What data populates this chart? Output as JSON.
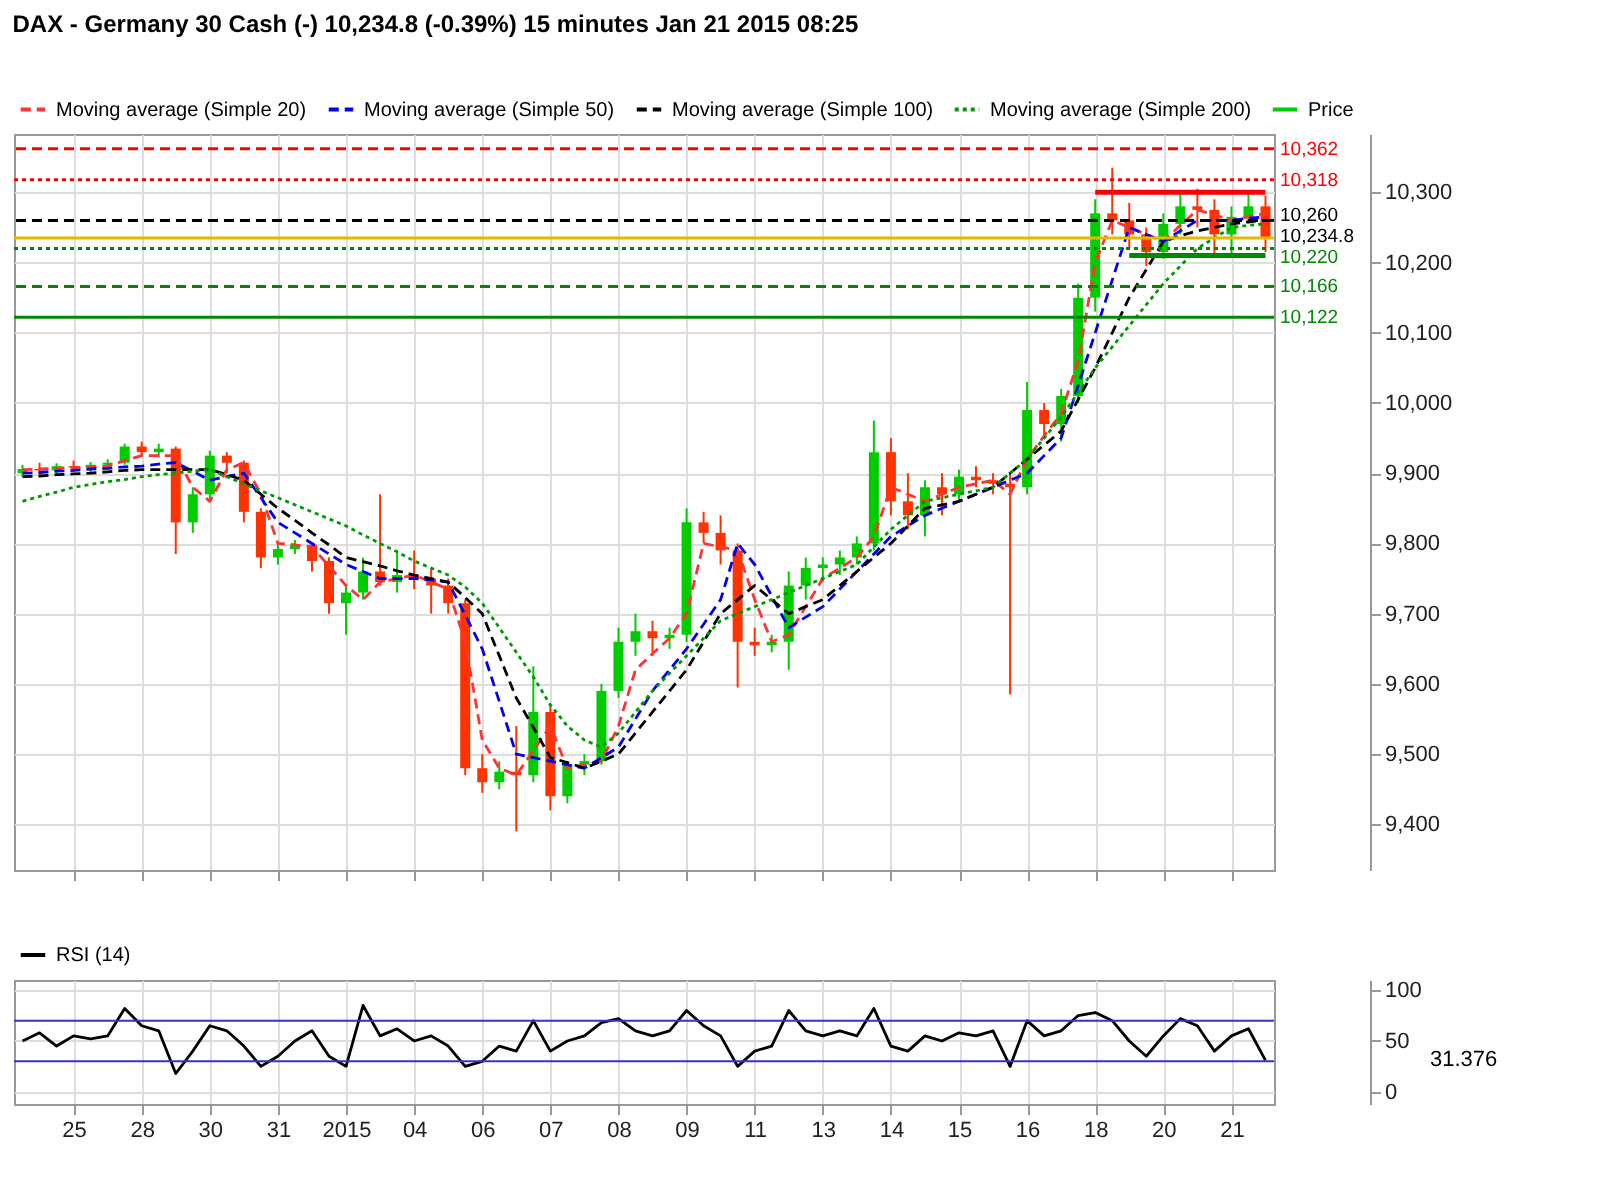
{
  "chart_data": [
    {
      "type": "candlestick",
      "title": "DAX - Germany 30 Cash (-)    10,234.8 (-0.39%)    15 minutes  Jan 21 2015 08:25",
      "categories": [
        null,
        null,
        null,
        "25",
        null,
        null,
        null,
        "28",
        null,
        null,
        null,
        "30",
        null,
        null,
        null,
        "31",
        null,
        null,
        null,
        "2015",
        null,
        null,
        null,
        "04",
        null,
        null,
        null,
        "06",
        null,
        null,
        null,
        "07",
        null,
        null,
        null,
        "08",
        null,
        null,
        null,
        "09",
        null,
        null,
        null,
        "11",
        null,
        null,
        null,
        "13",
        null,
        null,
        null,
        "14",
        null,
        null,
        null,
        "15",
        null,
        null,
        null,
        "16",
        null,
        null,
        null,
        "18",
        null,
        null,
        null,
        "20",
        null,
        null,
        null,
        "21",
        null,
        null
      ],
      "ylim": [
        9335,
        10383
      ],
      "yticks": [
        {
          "value": 9400,
          "label": "9,400"
        },
        {
          "value": 9500,
          "label": "9,500"
        },
        {
          "value": 9600,
          "label": "9,600"
        },
        {
          "value": 9700,
          "label": "9,700"
        },
        {
          "value": 9800,
          "label": "9,800"
        },
        {
          "value": 9900,
          "label": "9,900"
        },
        {
          "value": 10000,
          "label": "10,000"
        },
        {
          "value": 10100,
          "label": "10,100"
        },
        {
          "value": 10200,
          "label": "10,200"
        },
        {
          "value": 10300,
          "label": "10,300"
        }
      ],
      "tick_labels": "y",
      "grid": true,
      "legend": "top left",
      "series": [
        {
          "name": "Moving average (Simple 20)",
          "type": "line",
          "color": "#ff3333",
          "line_style": "dashed",
          "values": [
            9905,
            9906,
            9907,
            9908,
            9909,
            9910,
            9918,
            9925,
            9925,
            9925,
            9880,
            9860,
            9905,
            9915,
            9870,
            9800,
            9798,
            9795,
            9768,
            9740,
            9720,
            9745,
            9750,
            9755,
            9745,
            9735,
            9660,
            9520,
            9480,
            9470,
            9505,
            9540,
            9480,
            9485,
            9490,
            9540,
            9620,
            9643,
            9665,
            9700,
            9800,
            9795,
            9790,
            9720,
            9660,
            9670,
            9710,
            9750,
            9765,
            9780,
            9810,
            9880,
            9870,
            9860,
            9870,
            9880,
            9885,
            9890,
            9870,
            9920,
            9953,
            9985,
            10060,
            10200,
            10260,
            10250,
            10240,
            10230,
            10253,
            10275,
            10268,
            10260,
            10265,
            10270
          ]
        },
        {
          "name": "Moving average (Simple 50)",
          "type": "line",
          "color": "#0000ee",
          "line_style": "dashed",
          "values": [
            9900,
            9901,
            9903,
            9904,
            9906,
            9907,
            9909,
            9910,
            9913,
            9915,
            9903,
            9890,
            9895,
            9900,
            9865,
            9830,
            9815,
            9800,
            9785,
            9770,
            9760,
            9750,
            9750,
            9750,
            9748,
            9745,
            9698,
            9650,
            9575,
            9500,
            9495,
            9490,
            9485,
            9480,
            9495,
            9510,
            9550,
            9590,
            9620,
            9650,
            9685,
            9720,
            9800,
            9770,
            9725,
            9680,
            9695,
            9710,
            9735,
            9760,
            9785,
            9810,
            9825,
            9840,
            9850,
            9860,
            9870,
            9880,
            9890,
            9900,
            9925,
            9950,
            10025,
            10100,
            10175,
            10250,
            10240,
            10230,
            10245,
            10260,
            10260,
            10260,
            10263,
            10265
          ]
        },
        {
          "name": "Moving average (Simple 100)",
          "type": "line",
          "color": "#000000",
          "line_style": "dashed",
          "values": [
            9895,
            9896,
            9898,
            9899,
            9900,
            9902,
            9904,
            9905,
            9905,
            9905,
            9905,
            9905,
            9898,
            9890,
            9870,
            9850,
            9833,
            9815,
            9798,
            9780,
            9774,
            9768,
            9761,
            9755,
            9750,
            9745,
            9723,
            9700,
            9640,
            9580,
            9538,
            9495,
            9488,
            9480,
            9490,
            9500,
            9530,
            9560,
            9590,
            9620,
            9660,
            9700,
            9720,
            9740,
            9720,
            9700,
            9710,
            9720,
            9740,
            9760,
            9780,
            9800,
            9825,
            9850,
            9855,
            9860,
            9870,
            9880,
            9900,
            9920,
            9940,
            9960,
            10005,
            10050,
            10100,
            10150,
            10190,
            10230,
            10238,
            10245,
            10250,
            10255,
            10258,
            10260
          ]
        },
        {
          "name": "Moving average (Simple 200)",
          "type": "line",
          "color": "#009900",
          "line_style": "dotted",
          "values": [
            9860,
            9867,
            9873,
            9880,
            9884,
            9888,
            9891,
            9895,
            9898,
            9900,
            9903,
            9905,
            9895,
            9885,
            9875,
            9865,
            9855,
            9845,
            9835,
            9825,
            9812,
            9800,
            9788,
            9775,
            9765,
            9755,
            9738,
            9715,
            9680,
            9645,
            9610,
            9570,
            9540,
            9520,
            9510,
            9530,
            9560,
            9590,
            9615,
            9640,
            9665,
            9690,
            9700,
            9710,
            9720,
            9730,
            9740,
            9750,
            9760,
            9770,
            9795,
            9820,
            9840,
            9860,
            9865,
            9870,
            9875,
            9880,
            9900,
            9920,
            9950,
            9980,
            10015,
            10050,
            10080,
            10110,
            10140,
            10170,
            10195,
            10220,
            10235,
            10250,
            10253,
            10255
          ]
        },
        {
          "name": "Price",
          "type": "candlestick",
          "colors": [
            "#00cc00",
            "#ff3300",
            "#00cc00",
            "#ff3300",
            "#00cc00",
            "#00cc00",
            "#00cc00",
            "#ff3300",
            "#00cc00",
            "#ff3300",
            "#00cc00",
            "#00cc00",
            "#ff3300",
            "#ff3300",
            "#ff3300",
            "#00cc00",
            "#00cc00",
            "#ff3300",
            "#ff3300",
            "#00cc00",
            "#00cc00",
            "#ff3300",
            "#00cc00",
            "#ff3300",
            "#ff3300",
            "#ff3300",
            "#ff3300",
            "#ff3300",
            "#00cc00",
            "#ff3300",
            "#00cc00",
            "#ff3300",
            "#00cc00",
            "#00cc00",
            "#00cc00",
            "#00cc00",
            "#00cc00",
            "#ff3300",
            "#00cc00",
            "#00cc00",
            "#ff3300",
            "#ff3300",
            "#ff3300",
            "#ff3300",
            "#00cc00",
            "#00cc00",
            "#00cc00",
            "#00cc00",
            "#00cc00",
            "#00cc00",
            "#00cc00",
            "#ff3300",
            "#ff3300",
            "#00cc00",
            "#ff3300",
            "#00cc00",
            "#ff3300",
            "#ff3300",
            "#ff3300",
            "#00cc00",
            "#ff3300",
            "#00cc00",
            "#00cc00",
            "#00cc00",
            "#ff3300",
            "#ff3300",
            "#ff3300",
            "#00cc00",
            "#00cc00",
            "#ff3300",
            "#ff3300",
            "#00cc00",
            "#00cc00",
            "#ff3300"
          ],
          "ohlc": [
            [
              9900,
              9912,
              9895,
              9906
            ],
            [
              9906,
              9915,
              9898,
              9904
            ],
            [
              9904,
              9914,
              9900,
              9910
            ],
            [
              9910,
              9918,
              9902,
              9908
            ],
            [
              9908,
              9916,
              9900,
              9912
            ],
            [
              9912,
              9920,
              9905,
              9915
            ],
            [
              9915,
              9942,
              9912,
              9938
            ],
            [
              9938,
              9945,
              9925,
              9930
            ],
            [
              9930,
              9942,
              9922,
              9935
            ],
            [
              9935,
              9938,
              9785,
              9830
            ],
            [
              9830,
              9880,
              9815,
              9870
            ],
            [
              9870,
              9932,
              9860,
              9925
            ],
            [
              9925,
              9930,
              9900,
              9915
            ],
            [
              9915,
              9918,
              9830,
              9845
            ],
            [
              9845,
              9850,
              9765,
              9780
            ],
            [
              9780,
              9800,
              9770,
              9792
            ],
            [
              9792,
              9805,
              9785,
              9798
            ],
            [
              9798,
              9802,
              9760,
              9775
            ],
            [
              9775,
              9780,
              9700,
              9715
            ],
            [
              9715,
              9740,
              9670,
              9730
            ],
            [
              9730,
              9780,
              9720,
              9760
            ],
            [
              9760,
              9870,
              9740,
              9745
            ],
            [
              9745,
              9790,
              9730,
              9755
            ],
            [
              9755,
              9790,
              9735,
              9750
            ],
            [
              9750,
              9765,
              9700,
              9740
            ],
            [
              9740,
              9750,
              9700,
              9715
            ],
            [
              9715,
              9720,
              9470,
              9480
            ],
            [
              9480,
              9500,
              9445,
              9460
            ],
            [
              9460,
              9490,
              9450,
              9475
            ],
            [
              9475,
              9540,
              9390,
              9470
            ],
            [
              9470,
              9625,
              9460,
              9560
            ],
            [
              9560,
              9570,
              9420,
              9440
            ],
            [
              9440,
              9490,
              9430,
              9485
            ],
            [
              9485,
              9500,
              9470,
              9490
            ],
            [
              9490,
              9600,
              9485,
              9590
            ],
            [
              9590,
              9680,
              9580,
              9660
            ],
            [
              9660,
              9700,
              9640,
              9675
            ],
            [
              9675,
              9690,
              9640,
              9665
            ],
            [
              9665,
              9680,
              9650,
              9670
            ],
            [
              9670,
              9850,
              9660,
              9830
            ],
            [
              9830,
              9845,
              9800,
              9815
            ],
            [
              9815,
              9840,
              9770,
              9790
            ],
            [
              9790,
              9800,
              9595,
              9660
            ],
            [
              9660,
              9680,
              9640,
              9655
            ],
            [
              9655,
              9670,
              9645,
              9660
            ],
            [
              9660,
              9760,
              9620,
              9740
            ],
            [
              9740,
              9780,
              9720,
              9765
            ],
            [
              9765,
              9780,
              9745,
              9770
            ],
            [
              9770,
              9790,
              9755,
              9780
            ],
            [
              9780,
              9810,
              9770,
              9800
            ],
            [
              9800,
              9975,
              9790,
              9930
            ],
            [
              9930,
              9950,
              9840,
              9860
            ],
            [
              9860,
              9900,
              9820,
              9840
            ],
            [
              9840,
              9890,
              9810,
              9880
            ],
            [
              9880,
              9900,
              9840,
              9870
            ],
            [
              9870,
              9905,
              9860,
              9895
            ],
            [
              9895,
              9910,
              9880,
              9890
            ],
            [
              9890,
              9900,
              9870,
              9885
            ],
            [
              9885,
              9900,
              9585,
              9880
            ],
            [
              9880,
              10030,
              9870,
              9990
            ],
            [
              9990,
              10000,
              9950,
              9970
            ],
            [
              9970,
              10020,
              9945,
              10010
            ],
            [
              10010,
              10170,
              10000,
              10150
            ],
            [
              10150,
              10290,
              10130,
              10270
            ],
            [
              10270,
              10335,
              10240,
              10260
            ],
            [
              10260,
              10285,
              10220,
              10240
            ],
            [
              10240,
              10250,
              10195,
              10215
            ],
            [
              10215,
              10270,
              10205,
              10255
            ],
            [
              10255,
              10300,
              10240,
              10280
            ],
            [
              10280,
              10305,
              10250,
              10275
            ],
            [
              10275,
              10290,
              10210,
              10240
            ],
            [
              10240,
              10280,
              10210,
              10265
            ],
            [
              10265,
              10300,
              10255,
              10280
            ],
            [
              10280,
              10295,
              10215,
              10234.8
            ]
          ]
        },
        {
          "type": "line",
          "color": "#ff0000",
          "line_style": "solid",
          "values": [
            null,
            null,
            null,
            null,
            null,
            null,
            null,
            null,
            null,
            null,
            null,
            null,
            null,
            null,
            null,
            null,
            null,
            null,
            null,
            null,
            null,
            null,
            null,
            null,
            null,
            null,
            null,
            null,
            null,
            null,
            null,
            null,
            null,
            null,
            null,
            null,
            null,
            null,
            null,
            null,
            null,
            null,
            null,
            null,
            null,
            null,
            null,
            null,
            null,
            null,
            null,
            null,
            null,
            null,
            null,
            null,
            null,
            null,
            null,
            null,
            null,
            null,
            null,
            10300,
            10300,
            10300,
            10300,
            10300,
            10300,
            10300,
            10300,
            10300,
            10300,
            10300
          ]
        },
        {
          "type": "line",
          "color": "#008800",
          "line_style": "solid",
          "values": [
            null,
            null,
            null,
            null,
            null,
            null,
            null,
            null,
            null,
            null,
            null,
            null,
            null,
            null,
            null,
            null,
            null,
            null,
            null,
            null,
            null,
            null,
            null,
            null,
            null,
            null,
            null,
            null,
            null,
            null,
            null,
            null,
            null,
            null,
            null,
            null,
            null,
            null,
            null,
            null,
            null,
            null,
            null,
            null,
            null,
            null,
            null,
            null,
            null,
            null,
            null,
            null,
            null,
            null,
            null,
            null,
            null,
            null,
            null,
            null,
            null,
            null,
            null,
            null,
            null,
            10210,
            10210,
            10210,
            10210,
            10210,
            10210,
            10210,
            10210,
            10210
          ]
        }
      ],
      "ref_lines": [
        {
          "axis": "y",
          "value": 10362,
          "label": "10,362",
          "color": "#ff0000",
          "line_style": "dashed"
        },
        {
          "axis": "y",
          "value": 10318,
          "label": "10,318",
          "color": "#ff0000",
          "line_style": "dotted"
        },
        {
          "axis": "y",
          "value": 10260,
          "label": "10,260",
          "color": "#000000",
          "line_style": "dashed"
        },
        {
          "axis": "y",
          "value": 10234.8,
          "label": "10,234.8",
          "color": "#e6b800",
          "line_style": "solid"
        },
        {
          "axis": "y",
          "value": 10220,
          "label": "10,220",
          "color": "#008800",
          "line_style": "dotted"
        },
        {
          "axis": "y",
          "value": 10166,
          "label": "10,166",
          "color": "#008800",
          "line_style": "dashed"
        },
        {
          "axis": "y",
          "value": 10122,
          "label": "10,122",
          "color": "#008800",
          "line_style": "solid"
        }
      ]
    },
    {
      "type": "line",
      "categories": [
        null,
        null,
        null,
        "25",
        null,
        null,
        null,
        "28",
        null,
        null,
        null,
        "30",
        null,
        null,
        null,
        "31",
        null,
        null,
        null,
        "2015",
        null,
        null,
        null,
        "04",
        null,
        null,
        null,
        "06",
        null,
        null,
        null,
        "07",
        null,
        null,
        null,
        "08",
        null,
        null,
        null,
        "09",
        null,
        null,
        null,
        "11",
        null,
        null,
        null,
        "13",
        null,
        null,
        null,
        "14",
        null,
        null,
        null,
        "15",
        null,
        null,
        null,
        "16",
        null,
        null,
        null,
        "18",
        null,
        null,
        null,
        "20",
        null,
        null,
        null,
        "21",
        null,
        null
      ],
      "ylim": [
        -12,
        110
      ],
      "yticks": [
        0,
        50,
        100
      ],
      "grid": true,
      "legend": "top left",
      "series": [
        {
          "name": "RSI (14)",
          "color": "#000000",
          "values": [
            50,
            58,
            45,
            55,
            52,
            55,
            82,
            65,
            60,
            18,
            40,
            65,
            60,
            45,
            25,
            35,
            50,
            60,
            35,
            25,
            85,
            55,
            62,
            50,
            55,
            45,
            25,
            30,
            45,
            40,
            70,
            40,
            50,
            55,
            68,
            72,
            60,
            55,
            60,
            80,
            65,
            55,
            25,
            40,
            45,
            80,
            60,
            55,
            60,
            55,
            82,
            45,
            40,
            55,
            50,
            58,
            55,
            60,
            25,
            70,
            55,
            60,
            75,
            78,
            70,
            50,
            35,
            55,
            72,
            65,
            40,
            55,
            62,
            31
          ]
        }
      ],
      "ref_lines": [
        {
          "axis": "y",
          "value": 70,
          "color": "#3333cc",
          "line_style": "solid"
        },
        {
          "axis": "y",
          "value": 30,
          "color": "#3333cc",
          "line_style": "solid"
        }
      ],
      "annotations": [
        "31.376"
      ]
    }
  ]
}
